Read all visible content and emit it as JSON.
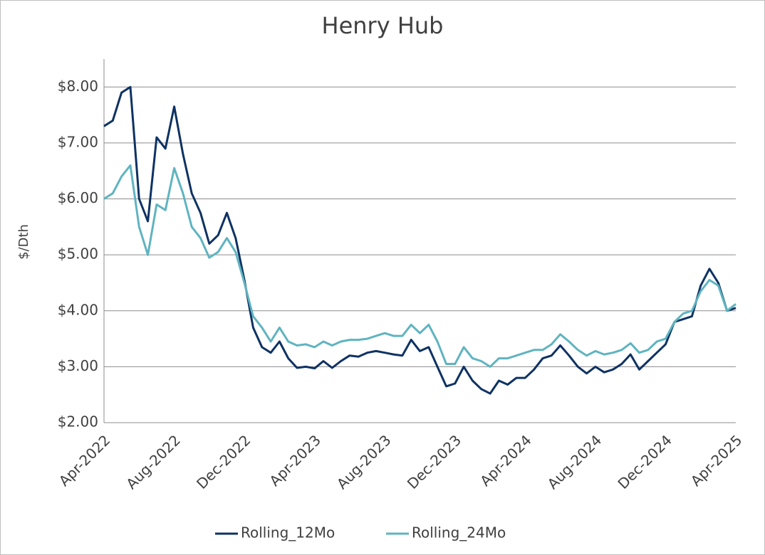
{
  "chart_data": {
    "type": "line",
    "title": "Henry Hub",
    "y_label": "$/Dth",
    "categories": [
      "Apr-2022",
      null,
      null,
      null,
      null,
      null,
      null,
      null,
      "Aug-2022",
      null,
      null,
      null,
      null,
      null,
      null,
      null,
      "Dec-2022",
      null,
      null,
      null,
      null,
      null,
      null,
      null,
      "Apr-2023",
      null,
      null,
      null,
      null,
      null,
      null,
      null,
      "Aug-2023",
      null,
      null,
      null,
      null,
      null,
      null,
      null,
      "Dec-2023",
      null,
      null,
      null,
      null,
      null,
      null,
      null,
      "Apr-2024",
      null,
      null,
      null,
      null,
      null,
      null,
      null,
      "Aug-2024",
      null,
      null,
      null,
      null,
      null,
      null,
      null,
      "Dec-2024",
      null,
      null,
      null,
      null,
      null,
      null,
      null,
      "Apr-2025"
    ],
    "series": [
      {
        "name": "Rolling_12Mo",
        "color": "#0e3263",
        "values": [
          7.3,
          7.4,
          7.9,
          8.0,
          6.0,
          5.6,
          7.1,
          6.9,
          7.65,
          6.8,
          6.1,
          5.75,
          5.2,
          5.35,
          5.75,
          5.3,
          4.55,
          3.7,
          3.35,
          3.25,
          3.45,
          3.15,
          2.98,
          3.0,
          2.97,
          3.1,
          2.98,
          3.1,
          3.2,
          3.18,
          3.25,
          3.28,
          3.25,
          3.22,
          3.2,
          3.48,
          3.28,
          3.35,
          3.0,
          2.65,
          2.7,
          3.0,
          2.75,
          2.6,
          2.52,
          2.75,
          2.68,
          2.8,
          2.8,
          2.95,
          3.15,
          3.2,
          3.38,
          3.2,
          3.0,
          2.88,
          3.0,
          2.9,
          2.95,
          3.05,
          3.22,
          2.95,
          3.1,
          3.25,
          3.4,
          3.8,
          3.85,
          3.9,
          4.45,
          4.75,
          4.5,
          4.0,
          4.05
        ]
      },
      {
        "name": "Rolling_24Mo",
        "color": "#5fb4c0",
        "values": [
          6.0,
          6.1,
          6.4,
          6.6,
          5.5,
          5.0,
          5.9,
          5.8,
          6.55,
          6.1,
          5.5,
          5.3,
          4.95,
          5.05,
          5.3,
          5.05,
          4.5,
          3.9,
          3.7,
          3.45,
          3.7,
          3.45,
          3.38,
          3.4,
          3.35,
          3.45,
          3.38,
          3.45,
          3.48,
          3.48,
          3.5,
          3.55,
          3.6,
          3.55,
          3.55,
          3.75,
          3.6,
          3.75,
          3.45,
          3.05,
          3.05,
          3.35,
          3.15,
          3.1,
          3.0,
          3.15,
          3.15,
          3.2,
          3.25,
          3.3,
          3.3,
          3.4,
          3.58,
          3.45,
          3.3,
          3.2,
          3.28,
          3.22,
          3.25,
          3.3,
          3.42,
          3.25,
          3.3,
          3.45,
          3.5,
          3.8,
          3.95,
          4.0,
          4.35,
          4.55,
          4.45,
          4.0,
          4.12
        ]
      }
    ],
    "ylim": [
      2,
      8.5
    ],
    "yticks": [
      {
        "value": 2,
        "label": "$2.00"
      },
      {
        "value": 3,
        "label": "$3.00"
      },
      {
        "value": 4,
        "label": "$4.00"
      },
      {
        "value": 5,
        "label": "$5.00"
      },
      {
        "value": 6,
        "label": "$6.00"
      },
      {
        "value": 7,
        "label": "$7.00"
      },
      {
        "value": 8,
        "label": "$8.00"
      }
    ],
    "grid": true,
    "legend": "bottom"
  }
}
